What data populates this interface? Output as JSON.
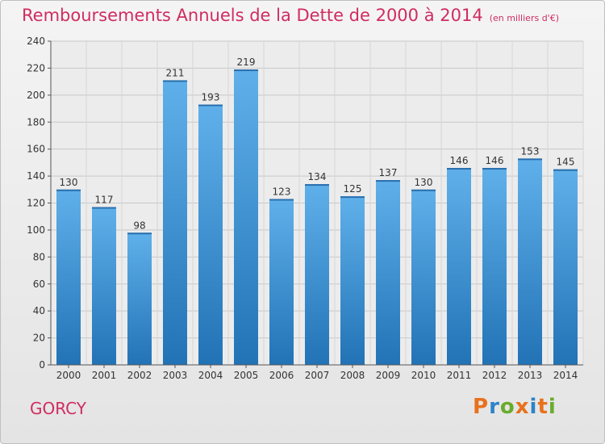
{
  "chart_data": {
    "type": "bar",
    "title": "Remboursements Annuels de la Dette de 2000 à 2014",
    "subtitle": "(en milliers d'€)",
    "categories": [
      "2000",
      "2001",
      "2002",
      "2003",
      "2004",
      "2005",
      "2006",
      "2007",
      "2008",
      "2009",
      "2010",
      "2011",
      "2012",
      "2013",
      "2014"
    ],
    "values": [
      130,
      117,
      98,
      211,
      193,
      219,
      123,
      134,
      125,
      137,
      130,
      146,
      146,
      153,
      145
    ],
    "ylim": [
      0,
      240
    ],
    "yticks": [
      0,
      20,
      40,
      60,
      80,
      100,
      120,
      140,
      160,
      180,
      200,
      220,
      240
    ],
    "grid": true,
    "bar_color": "#3d91d6"
  },
  "footer": {
    "commune": "GORCY",
    "logo_text": "Proxiti"
  },
  "colors": {
    "title": "#d02c61",
    "logo_letters": [
      "#e8711c",
      "#2d83c7",
      "#6aab2c",
      "#e8711c",
      "#2d83c7",
      "#e8711c",
      "#6aab2c"
    ]
  }
}
